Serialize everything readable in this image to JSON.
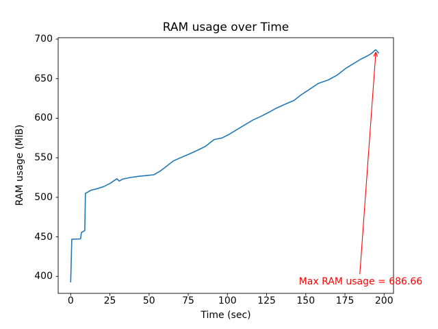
{
  "figure": {
    "background": "#ffffff",
    "axis_color": "#000000"
  },
  "chart_data": {
    "type": "line",
    "title": "RAM usage over Time",
    "xlabel": "Time (sec)",
    "ylabel": "RAM usage (MiB)",
    "x_ticks": [
      0,
      25,
      50,
      75,
      100,
      125,
      150,
      175,
      200
    ],
    "y_ticks": [
      400,
      450,
      500,
      550,
      600,
      650,
      700
    ],
    "xlim": [
      -8,
      206
    ],
    "ylim": [
      378.6,
      701.8
    ],
    "grid": false,
    "legend": false,
    "series": [
      {
        "name": "RAM usage",
        "color": "#1f77b4",
        "points": [
          [
            0,
            393
          ],
          [
            0.7,
            447
          ],
          [
            6.3,
            447.5
          ],
          [
            6.8,
            455.5
          ],
          [
            9.0,
            458
          ],
          [
            9.4,
            505
          ],
          [
            13,
            509
          ],
          [
            17,
            511
          ],
          [
            21,
            513.5
          ],
          [
            25,
            517.5
          ],
          [
            29.5,
            523.5
          ],
          [
            31,
            520.5
          ],
          [
            33,
            523
          ],
          [
            38,
            525
          ],
          [
            43,
            526.5
          ],
          [
            48,
            527.5
          ],
          [
            53,
            528.5
          ],
          [
            57,
            533
          ],
          [
            60,
            537.5
          ],
          [
            65.5,
            546
          ],
          [
            70,
            550
          ],
          [
            76,
            555
          ],
          [
            81.5,
            560
          ],
          [
            86,
            564.5
          ],
          [
            91.5,
            573
          ],
          [
            96.5,
            575
          ],
          [
            101,
            579.5
          ],
          [
            106,
            585.5
          ],
          [
            111,
            591.5
          ],
          [
            116.5,
            598
          ],
          [
            121,
            602
          ],
          [
            126,
            607
          ],
          [
            131,
            612.5
          ],
          [
            136,
            617
          ],
          [
            142.5,
            622.5
          ],
          [
            147,
            629.5
          ],
          [
            152,
            636
          ],
          [
            158,
            644
          ],
          [
            164.5,
            648.5
          ],
          [
            170,
            654.5
          ],
          [
            175.5,
            663
          ],
          [
            180,
            668.5
          ],
          [
            185,
            674.5
          ],
          [
            189,
            678.5
          ],
          [
            192,
            682
          ],
          [
            194.6,
            686.66
          ],
          [
            196.5,
            682.5
          ]
        ]
      }
    ],
    "max_point": {
      "x": 194.6,
      "y": 686.66
    },
    "annotation": {
      "text": "Max RAM usage = 686.66",
      "color": "#ff0000",
      "text_xy": [
        145.6,
        390
      ],
      "arrow_tail_xy": [
        184.5,
        402.9
      ],
      "arrow_tip_xy": [
        194.7,
        683.5
      ]
    }
  }
}
